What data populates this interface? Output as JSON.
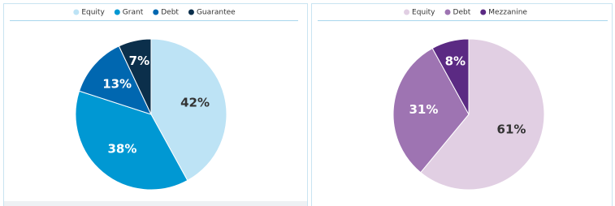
{
  "chart_data": [
    {
      "type": "pie",
      "categories": [
        "Equity",
        "Grant",
        "Debt",
        "Guarantee"
      ],
      "values": [
        42,
        38,
        13,
        7
      ],
      "value_labels": [
        "42%",
        "38%",
        "13%",
        "7%"
      ],
      "colors": [
        "#bde3f5",
        "#0098d3",
        "#0067b0",
        "#0b2f4b"
      ]
    },
    {
      "type": "pie",
      "categories": [
        "Equity",
        "Debt",
        "Mezzanine"
      ],
      "values": [
        61,
        31,
        8
      ],
      "value_labels": [
        "61%",
        "31%",
        "8%"
      ],
      "colors": [
        "#e1cfe3",
        "#9e74b2",
        "#5b2a83"
      ]
    }
  ]
}
